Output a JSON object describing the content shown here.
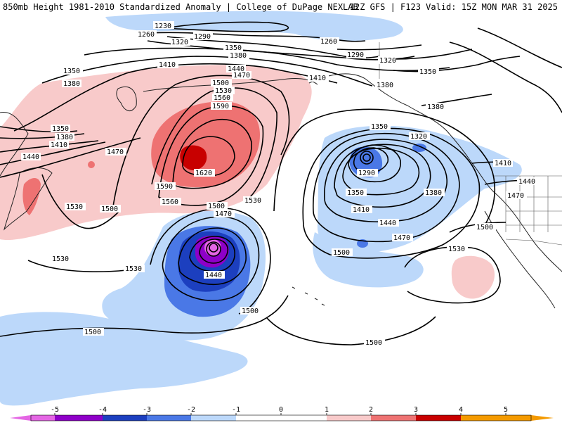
{
  "header": {
    "title_left": "850mb Height 1981-2010 Standardized Anomaly | College of DuPage NEXLAB",
    "title_right": "12Z GFS | F123 Valid: 15Z MON MAR 31 2025"
  },
  "colors": {
    "anom_neg5": "#e466e4",
    "anom_neg4": "#8e00c8",
    "anom_neg3": "#1c3fbf",
    "anom_neg2": "#4a78e6",
    "anom_neg1": "#bcd8fa",
    "anom_pos1": "#f8caca",
    "anom_pos2": "#ee7272",
    "anom_pos3": "#c80000",
    "anom_pos4": "#f49a00"
  },
  "contours": [
    {
      "label": "1230"
    },
    {
      "label": "1260"
    },
    {
      "label": "1290"
    },
    {
      "label": "1320"
    },
    {
      "label": "1350"
    },
    {
      "label": "1380"
    },
    {
      "label": "1410"
    },
    {
      "label": "1440"
    },
    {
      "label": "1470"
    },
    {
      "label": "1500"
    },
    {
      "label": "1530"
    },
    {
      "label": "1560"
    },
    {
      "label": "1590"
    },
    {
      "label": "1620"
    }
  ],
  "colorbar": {
    "ticks": [
      "-5",
      "-4",
      "-3",
      "-2",
      "-1",
      "0",
      "1",
      "2",
      "3",
      "4",
      "5"
    ]
  }
}
